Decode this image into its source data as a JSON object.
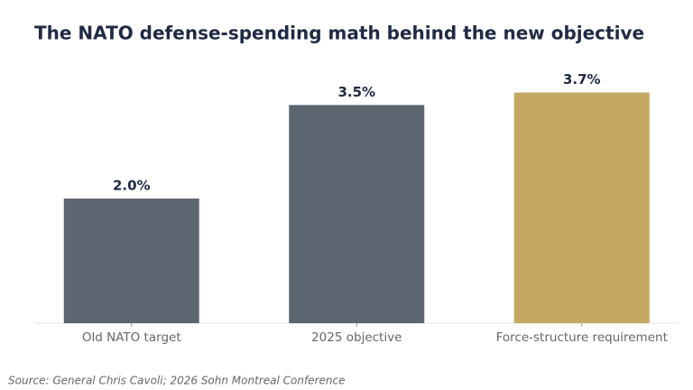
{
  "chart_data": {
    "type": "bar",
    "title": "The NATO defense-spending math behind the new objective",
    "categories": [
      "Old NATO target",
      "2025 objective",
      "Force-structure requirement"
    ],
    "values": [
      2.0,
      3.5,
      3.7
    ],
    "value_labels": [
      "2.0%",
      "3.5%",
      "3.7%"
    ],
    "colors": [
      "#5c6670",
      "#5c6670",
      "#c4a862"
    ],
    "ylim": [
      0,
      4.2
    ],
    "source": "Source: General Chris Cavoli; 2026 Sohn Montreal Conference"
  }
}
